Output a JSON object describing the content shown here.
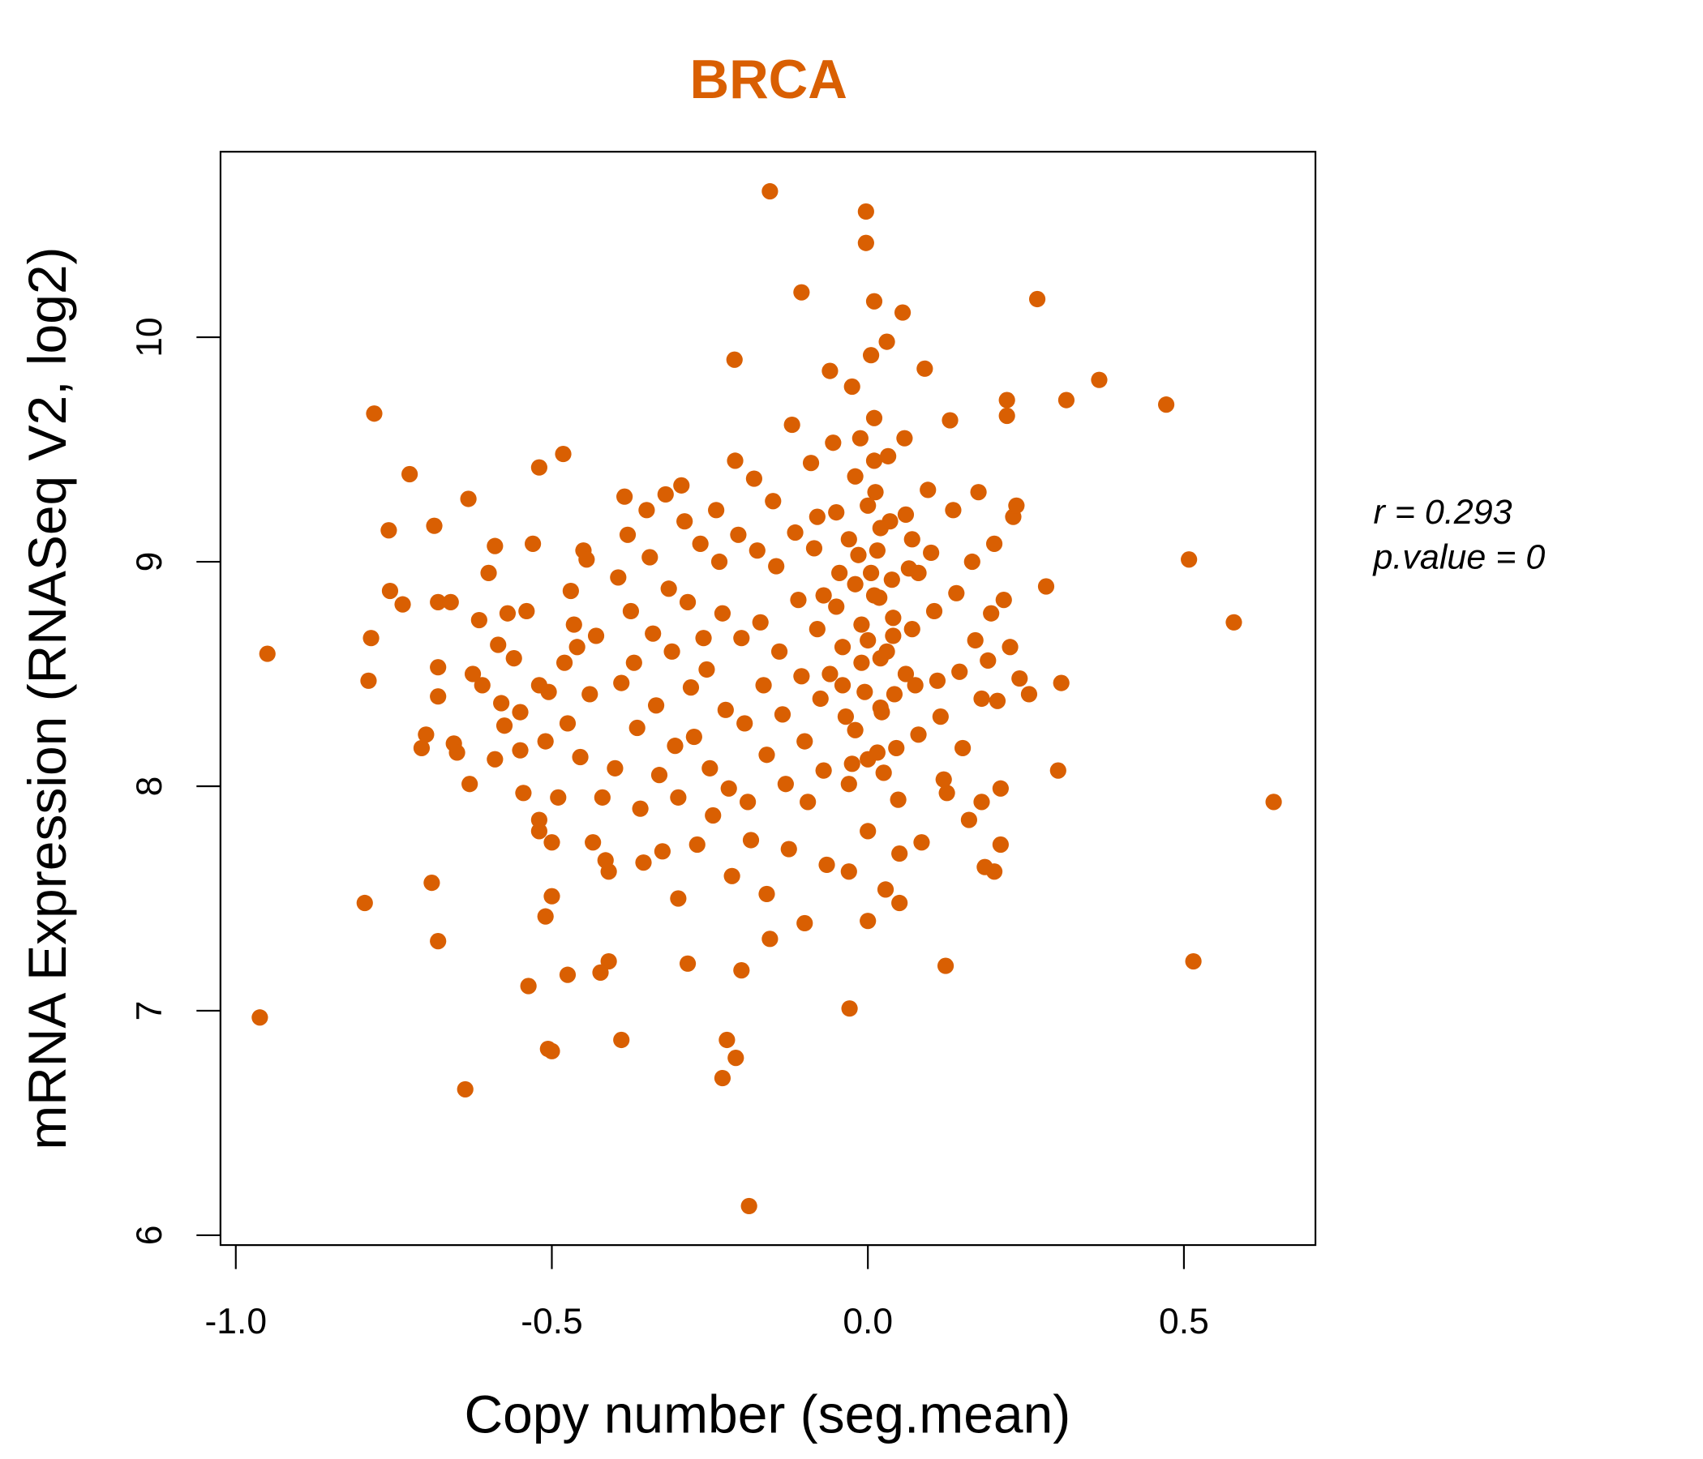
{
  "chart_data": {
    "type": "scatter",
    "title": "BRCA",
    "xlabel": "Copy number (seg.mean)",
    "ylabel": "mRNA Expression (RNASeq V2, log2)",
    "xlim": [
      -1.03,
      0.7
    ],
    "ylim": [
      6.0,
      10.83
    ],
    "xticks": [
      -1.0,
      -0.5,
      0.0,
      0.5
    ],
    "xtick_labels": [
      "-1.0",
      "-0.5",
      "0.0",
      "0.5"
    ],
    "yticks": [
      6,
      7,
      8,
      9,
      10
    ],
    "ytick_labels": [
      "6",
      "7",
      "8",
      "9",
      "10"
    ],
    "grid": false,
    "point_color": "#D95F02",
    "title_color": "#D95F02",
    "annotation": {
      "r_label": "r = 0.293",
      "p_label": "p.value = 0"
    },
    "points": [
      [
        -0.155,
        10.65
      ],
      [
        -0.003,
        10.56
      ],
      [
        -0.003,
        10.42
      ],
      [
        -0.105,
        10.2
      ],
      [
        0.268,
        10.17
      ],
      [
        0.01,
        10.16
      ],
      [
        -0.211,
        9.9
      ],
      [
        0.366,
        9.81
      ],
      [
        0.472,
        9.7
      ],
      [
        0.314,
        9.72
      ],
      [
        -0.781,
        9.66
      ],
      [
        -0.725,
        9.39
      ],
      [
        -0.482,
        9.48
      ],
      [
        -0.52,
        9.42
      ],
      [
        -0.632,
        9.28
      ],
      [
        -0.758,
        9.14
      ],
      [
        -0.686,
        9.16
      ],
      [
        -0.95,
        8.59
      ],
      [
        0.508,
        9.01
      ],
      [
        0.579,
        8.73
      ],
      [
        0.642,
        7.93
      ],
      [
        0.515,
        7.22
      ],
      [
        0.301,
        8.07
      ],
      [
        0.306,
        8.46
      ],
      [
        0.282,
        8.89
      ],
      [
        -0.962,
        6.97
      ],
      [
        -0.796,
        7.48
      ],
      [
        -0.69,
        7.57
      ],
      [
        -0.68,
        7.31
      ],
      [
        -0.637,
        6.65
      ],
      [
        -0.537,
        7.11
      ],
      [
        -0.506,
        6.83
      ],
      [
        -0.5,
        6.82
      ],
      [
        -0.475,
        7.16
      ],
      [
        -0.39,
        6.87
      ],
      [
        -0.41,
        7.22
      ],
      [
        -0.423,
        7.17
      ],
      [
        -0.188,
        6.13
      ],
      [
        -0.23,
        6.7
      ],
      [
        -0.209,
        6.79
      ],
      [
        -0.223,
        6.87
      ],
      [
        -0.029,
        7.01
      ],
      [
        0.123,
        7.2
      ],
      [
        -0.285,
        7.21
      ],
      [
        -0.2,
        7.18
      ],
      [
        -0.786,
        8.66
      ],
      [
        -0.79,
        8.47
      ],
      [
        -0.756,
        8.87
      ],
      [
        -0.736,
        8.81
      ],
      [
        -0.706,
        8.17
      ],
      [
        -0.699,
        8.23
      ],
      [
        -0.68,
        8.82
      ],
      [
        -0.66,
        8.82
      ],
      [
        -0.68,
        8.53
      ],
      [
        -0.68,
        8.4
      ],
      [
        -0.655,
        8.19
      ],
      [
        -0.65,
        8.15
      ],
      [
        -0.63,
        8.01
      ],
      [
        -0.625,
        8.5
      ],
      [
        -0.61,
        8.45
      ],
      [
        -0.615,
        8.74
      ],
      [
        -0.6,
        8.95
      ],
      [
        -0.59,
        9.07
      ],
      [
        -0.57,
        8.77
      ],
      [
        -0.585,
        8.63
      ],
      [
        -0.59,
        8.12
      ],
      [
        -0.58,
        8.37
      ],
      [
        -0.575,
        8.27
      ],
      [
        -0.56,
        8.57
      ],
      [
        -0.55,
        8.33
      ],
      [
        -0.55,
        8.16
      ],
      [
        -0.545,
        7.97
      ],
      [
        -0.54,
        8.78
      ],
      [
        -0.53,
        9.08
      ],
      [
        -0.52,
        8.45
      ],
      [
        -0.51,
        8.2
      ],
      [
        -0.505,
        8.42
      ],
      [
        -0.5,
        7.75
      ],
      [
        -0.5,
        7.51
      ],
      [
        -0.51,
        7.42
      ],
      [
        -0.52,
        7.85
      ],
      [
        -0.52,
        7.8
      ],
      [
        -0.49,
        7.95
      ],
      [
        -0.48,
        8.55
      ],
      [
        -0.475,
        8.28
      ],
      [
        -0.47,
        8.87
      ],
      [
        -0.465,
        8.72
      ],
      [
        -0.46,
        8.62
      ],
      [
        -0.455,
        8.13
      ],
      [
        -0.45,
        9.05
      ],
      [
        -0.445,
        9.01
      ],
      [
        -0.44,
        8.41
      ],
      [
        -0.43,
        8.67
      ],
      [
        -0.435,
        7.75
      ],
      [
        -0.42,
        7.95
      ],
      [
        -0.415,
        7.67
      ],
      [
        -0.41,
        7.62
      ],
      [
        -0.4,
        8.08
      ],
      [
        -0.395,
        8.93
      ],
      [
        -0.39,
        8.46
      ],
      [
        -0.385,
        9.29
      ],
      [
        -0.38,
        9.12
      ],
      [
        -0.375,
        8.78
      ],
      [
        -0.37,
        8.55
      ],
      [
        -0.365,
        8.26
      ],
      [
        -0.36,
        7.9
      ],
      [
        -0.355,
        7.66
      ],
      [
        -0.35,
        9.23
      ],
      [
        -0.345,
        9.02
      ],
      [
        -0.34,
        8.68
      ],
      [
        -0.335,
        8.36
      ],
      [
        -0.33,
        8.05
      ],
      [
        -0.325,
        7.71
      ],
      [
        -0.32,
        9.3
      ],
      [
        -0.315,
        8.88
      ],
      [
        -0.31,
        8.6
      ],
      [
        -0.305,
        8.18
      ],
      [
        -0.3,
        7.95
      ],
      [
        -0.3,
        7.5
      ],
      [
        -0.295,
        9.34
      ],
      [
        -0.29,
        9.18
      ],
      [
        -0.285,
        8.82
      ],
      [
        -0.28,
        8.44
      ],
      [
        -0.275,
        8.22
      ],
      [
        -0.27,
        7.74
      ],
      [
        -0.265,
        9.08
      ],
      [
        -0.26,
        8.66
      ],
      [
        -0.255,
        8.52
      ],
      [
        -0.25,
        8.08
      ],
      [
        -0.245,
        7.87
      ],
      [
        -0.24,
        9.23
      ],
      [
        -0.235,
        9.0
      ],
      [
        -0.23,
        8.77
      ],
      [
        -0.225,
        8.34
      ],
      [
        -0.22,
        7.99
      ],
      [
        -0.215,
        7.6
      ],
      [
        -0.21,
        9.45
      ],
      [
        -0.205,
        9.12
      ],
      [
        -0.2,
        8.66
      ],
      [
        -0.195,
        8.28
      ],
      [
        -0.19,
        7.93
      ],
      [
        -0.185,
        7.76
      ],
      [
        -0.18,
        9.37
      ],
      [
        -0.175,
        9.05
      ],
      [
        -0.17,
        8.73
      ],
      [
        -0.165,
        8.45
      ],
      [
        -0.16,
        8.14
      ],
      [
        -0.16,
        7.52
      ],
      [
        -0.155,
        7.32
      ],
      [
        -0.15,
        9.27
      ],
      [
        -0.145,
        8.98
      ],
      [
        -0.14,
        8.6
      ],
      [
        -0.135,
        8.32
      ],
      [
        -0.13,
        8.01
      ],
      [
        -0.125,
        7.72
      ],
      [
        -0.12,
        9.61
      ],
      [
        -0.115,
        9.13
      ],
      [
        -0.11,
        8.83
      ],
      [
        -0.105,
        8.49
      ],
      [
        -0.1,
        8.2
      ],
      [
        -0.1,
        7.39
      ],
      [
        -0.095,
        7.93
      ],
      [
        -0.09,
        9.44
      ],
      [
        -0.085,
        9.06
      ],
      [
        -0.08,
        8.7
      ],
      [
        -0.075,
        8.39
      ],
      [
        -0.07,
        8.07
      ],
      [
        -0.065,
        7.65
      ],
      [
        -0.06,
        9.85
      ],
      [
        -0.055,
        9.53
      ],
      [
        -0.05,
        9.22
      ],
      [
        -0.045,
        8.95
      ],
      [
        -0.04,
        8.62
      ],
      [
        -0.035,
        8.31
      ],
      [
        -0.03,
        8.01
      ],
      [
        -0.03,
        7.62
      ],
      [
        -0.025,
        9.78
      ],
      [
        -0.02,
        9.38
      ],
      [
        -0.015,
        9.03
      ],
      [
        -0.01,
        8.72
      ],
      [
        -0.005,
        8.42
      ],
      [
        0.0,
        8.12
      ],
      [
        0.0,
        7.8
      ],
      [
        0.0,
        7.4
      ],
      [
        0.005,
        9.92
      ],
      [
        0.01,
        9.64
      ],
      [
        0.012,
        9.31
      ],
      [
        0.015,
        9.05
      ],
      [
        0.018,
        8.84
      ],
      [
        0.02,
        8.57
      ],
      [
        0.022,
        8.33
      ],
      [
        0.025,
        8.06
      ],
      [
        0.028,
        7.54
      ],
      [
        0.03,
        9.98
      ],
      [
        0.032,
        9.47
      ],
      [
        0.035,
        9.18
      ],
      [
        0.038,
        8.92
      ],
      [
        0.04,
        8.67
      ],
      [
        0.042,
        8.41
      ],
      [
        0.045,
        8.17
      ],
      [
        0.048,
        7.94
      ],
      [
        0.05,
        7.7
      ],
      [
        0.05,
        7.48
      ],
      [
        0.055,
        10.11
      ],
      [
        0.058,
        9.55
      ],
      [
        0.06,
        9.21
      ],
      [
        0.065,
        8.97
      ],
      [
        0.07,
        8.7
      ],
      [
        0.075,
        8.45
      ],
      [
        0.08,
        8.23
      ],
      [
        0.085,
        7.75
      ],
      [
        0.09,
        9.86
      ],
      [
        0.095,
        9.32
      ],
      [
        0.1,
        9.04
      ],
      [
        0.105,
        8.78
      ],
      [
        0.11,
        8.47
      ],
      [
        0.115,
        8.31
      ],
      [
        0.12,
        8.03
      ],
      [
        0.125,
        7.97
      ],
      [
        0.13,
        9.63
      ],
      [
        0.135,
        9.23
      ],
      [
        0.14,
        8.86
      ],
      [
        0.145,
        8.51
      ],
      [
        0.15,
        8.17
      ],
      [
        0.16,
        7.85
      ],
      [
        0.165,
        9.0
      ],
      [
        0.17,
        8.65
      ],
      [
        0.175,
        9.31
      ],
      [
        0.18,
        8.39
      ],
      [
        0.185,
        7.64
      ],
      [
        0.19,
        8.56
      ],
      [
        0.195,
        8.77
      ],
      [
        0.2,
        9.08
      ],
      [
        0.205,
        8.38
      ],
      [
        0.21,
        7.99
      ],
      [
        0.21,
        7.74
      ],
      [
        0.215,
        8.83
      ],
      [
        0.22,
        9.72
      ],
      [
        0.225,
        8.62
      ],
      [
        0.23,
        9.2
      ],
      [
        0.235,
        9.25
      ],
      [
        0.24,
        8.48
      ],
      [
        0.255,
        8.41
      ],
      [
        0.22,
        9.65
      ],
      [
        0.2,
        7.62
      ],
      [
        0.18,
        7.93
      ],
      [
        -0.02,
        8.9
      ],
      [
        0.01,
        8.85
      ],
      [
        -0.03,
        9.1
      ],
      [
        0.02,
        9.15
      ],
      [
        -0.01,
        8.55
      ],
      [
        0.03,
        8.6
      ],
      [
        -0.04,
        8.45
      ],
      [
        0.04,
        8.75
      ],
      [
        -0.05,
        8.8
      ],
      [
        0.0,
        9.25
      ],
      [
        0.02,
        8.35
      ],
      [
        -0.02,
        8.25
      ],
      [
        0.01,
        9.45
      ],
      [
        -0.06,
        8.5
      ],
      [
        0.06,
        8.5
      ],
      [
        -0.07,
        8.85
      ],
      [
        0.07,
        9.1
      ],
      [
        -0.08,
        9.2
      ],
      [
        0.08,
        8.95
      ],
      [
        0.0,
        8.65
      ],
      [
        0.005,
        8.95
      ],
      [
        -0.012,
        9.55
      ],
      [
        0.015,
        8.15
      ],
      [
        -0.025,
        8.1
      ]
    ]
  }
}
